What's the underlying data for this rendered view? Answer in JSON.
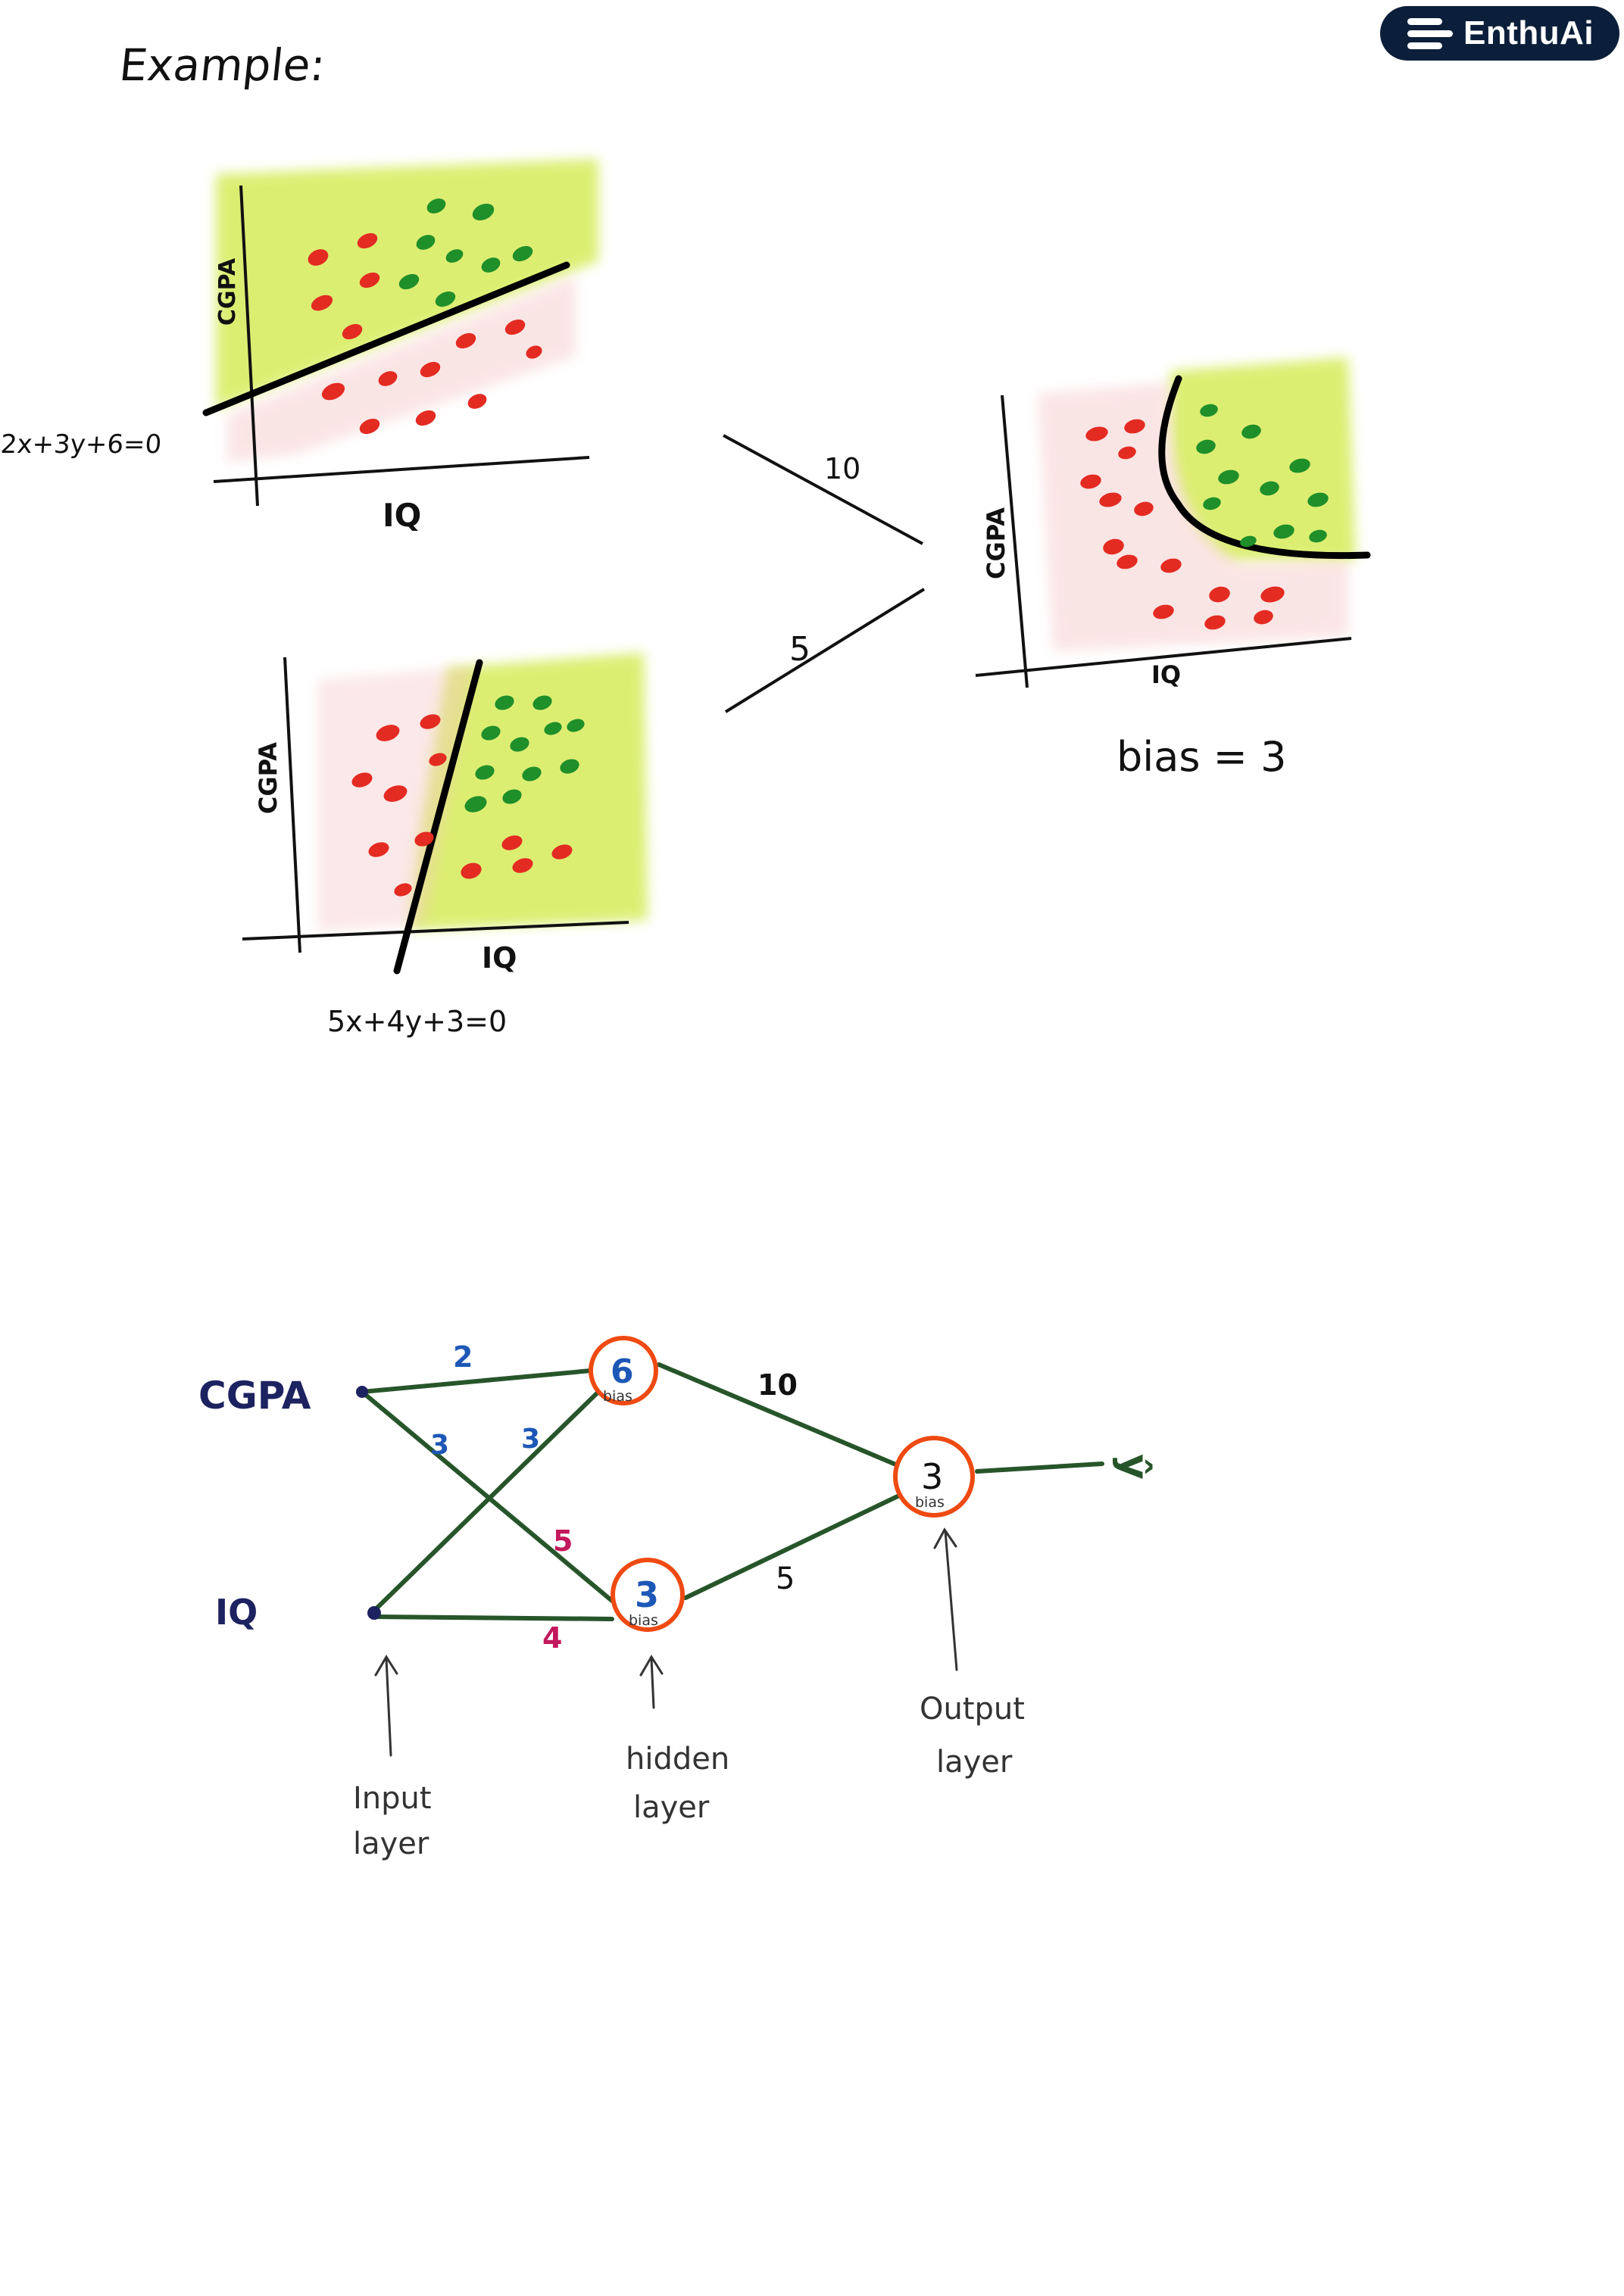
{
  "brand": {
    "name": "EnthuAi"
  },
  "title": "Example:",
  "plots": [
    {
      "ylabel": "CGPA",
      "xlabel": "IQ",
      "equation": "2x+3y+6=0"
    },
    {
      "ylabel": "CGPA",
      "xlabel": "IQ",
      "equation": "5x+4y+3=0"
    },
    {
      "ylabel": "CGPA",
      "xlabel": "IQ",
      "bias_text": "bias = 3"
    }
  ],
  "combine_weights": {
    "top": "10",
    "bottom": "5"
  },
  "network": {
    "inputs": [
      "CGPA",
      "IQ"
    ],
    "weights": {
      "cgpa_h1": "2",
      "iq_h1": "3",
      "cgpa_h2": "5",
      "iq_h2": "4",
      "cgpa_mark": "3",
      "h1_out": "10",
      "h2_out": "5"
    },
    "hidden": [
      {
        "value": "6",
        "tag": "bias"
      },
      {
        "value": "3",
        "tag": "bias"
      }
    ],
    "output": {
      "value": "3",
      "tag": "bias"
    },
    "yhat": "ŷ",
    "labels": {
      "input": [
        "Input",
        "layer"
      ],
      "hidden": [
        "hidden",
        "layer"
      ],
      "output": [
        "Output",
        "layer"
      ]
    }
  },
  "colors": {
    "green_fill": "#d6ec5a",
    "red_dot": "#e32b22",
    "green_dot": "#1f8f2a",
    "edge": "#27552a",
    "node": "#ee4a12",
    "blue": "#1d58b6",
    "magenta": "#c2185b",
    "navy": "#1d2260"
  }
}
